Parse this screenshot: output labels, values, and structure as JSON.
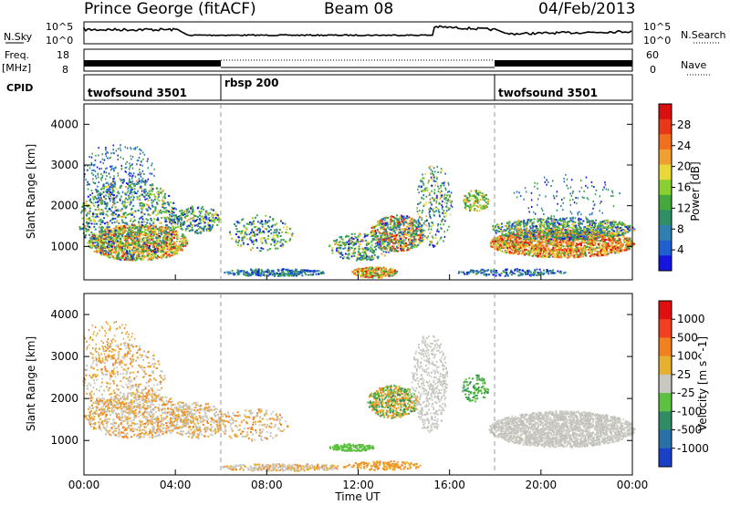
{
  "header": {
    "station": "Prince George (fitACF)",
    "beam": "Beam 08",
    "date": "04/Feb/2013"
  },
  "side_labels": {
    "nsky": "N.Sky",
    "freq_line1": "Freq.",
    "freq_line2": "[MHz]",
    "cpid": "CPID",
    "nsearch": "N.Search",
    "nave": "Nave"
  },
  "noise_panel": {
    "left_ticks": [
      "10^5",
      "10^0"
    ],
    "right_ticks": [
      "10^5",
      "10^0"
    ]
  },
  "freq_panel": {
    "left_ticks": [
      "18",
      "8"
    ],
    "right_ticks": [
      "60",
      "0"
    ]
  },
  "cpid_segments": [
    {
      "label": "twofsound 3501",
      "start_hour": 0,
      "end_hour": 6
    },
    {
      "label": "rbsp 200",
      "start_hour": 6,
      "end_hour": 18
    },
    {
      "label": "twofsound 3501",
      "start_hour": 18,
      "end_hour": 24
    }
  ],
  "chart_data": [
    {
      "type": "heatmap",
      "name": "power",
      "ylabel": "Slant Range [km]",
      "ylim": [
        180,
        4500
      ],
      "yticks": [
        "1000",
        "2000",
        "3000",
        "4000"
      ],
      "xlim_hours": [
        0,
        24
      ],
      "colorbar": {
        "label": "Power [dB]",
        "range": [
          0,
          32
        ],
        "tick_labels": [
          "4",
          "8",
          "12",
          "16",
          "20",
          "24",
          "28"
        ],
        "colors": [
          "#1515e0",
          "#1f5fd0",
          "#2f7fb0",
          "#2f9068",
          "#44a83a",
          "#8ad030",
          "#e8d838",
          "#f0a030",
          "#f07020",
          "#e83818",
          "#d81010"
        ]
      }
    },
    {
      "type": "heatmap",
      "name": "velocity",
      "ylabel": "Slant Range [km]",
      "ylim": [
        180,
        4500
      ],
      "yticks": [
        "1000",
        "2000",
        "3000",
        "4000"
      ],
      "xlim_hours": [
        0,
        24
      ],
      "colorbar": {
        "label": "Velocity [m s^-1]",
        "tick_labels": [
          "1000",
          "500",
          "100",
          "25",
          "-25",
          "-100",
          "-500",
          "-1000"
        ],
        "colors": [
          "#1a40c8",
          "#2a70a8",
          "#2f8c64",
          "#5cc040",
          "#c8c8c0",
          "#e8b030",
          "#f08020",
          "#f04020",
          "#e01010"
        ]
      }
    }
  ],
  "xaxis": {
    "ticks": [
      "00:00",
      "04:00",
      "08:00",
      "12:00",
      "16:00",
      "20:00",
      "00:00"
    ],
    "label": "Time UT"
  }
}
